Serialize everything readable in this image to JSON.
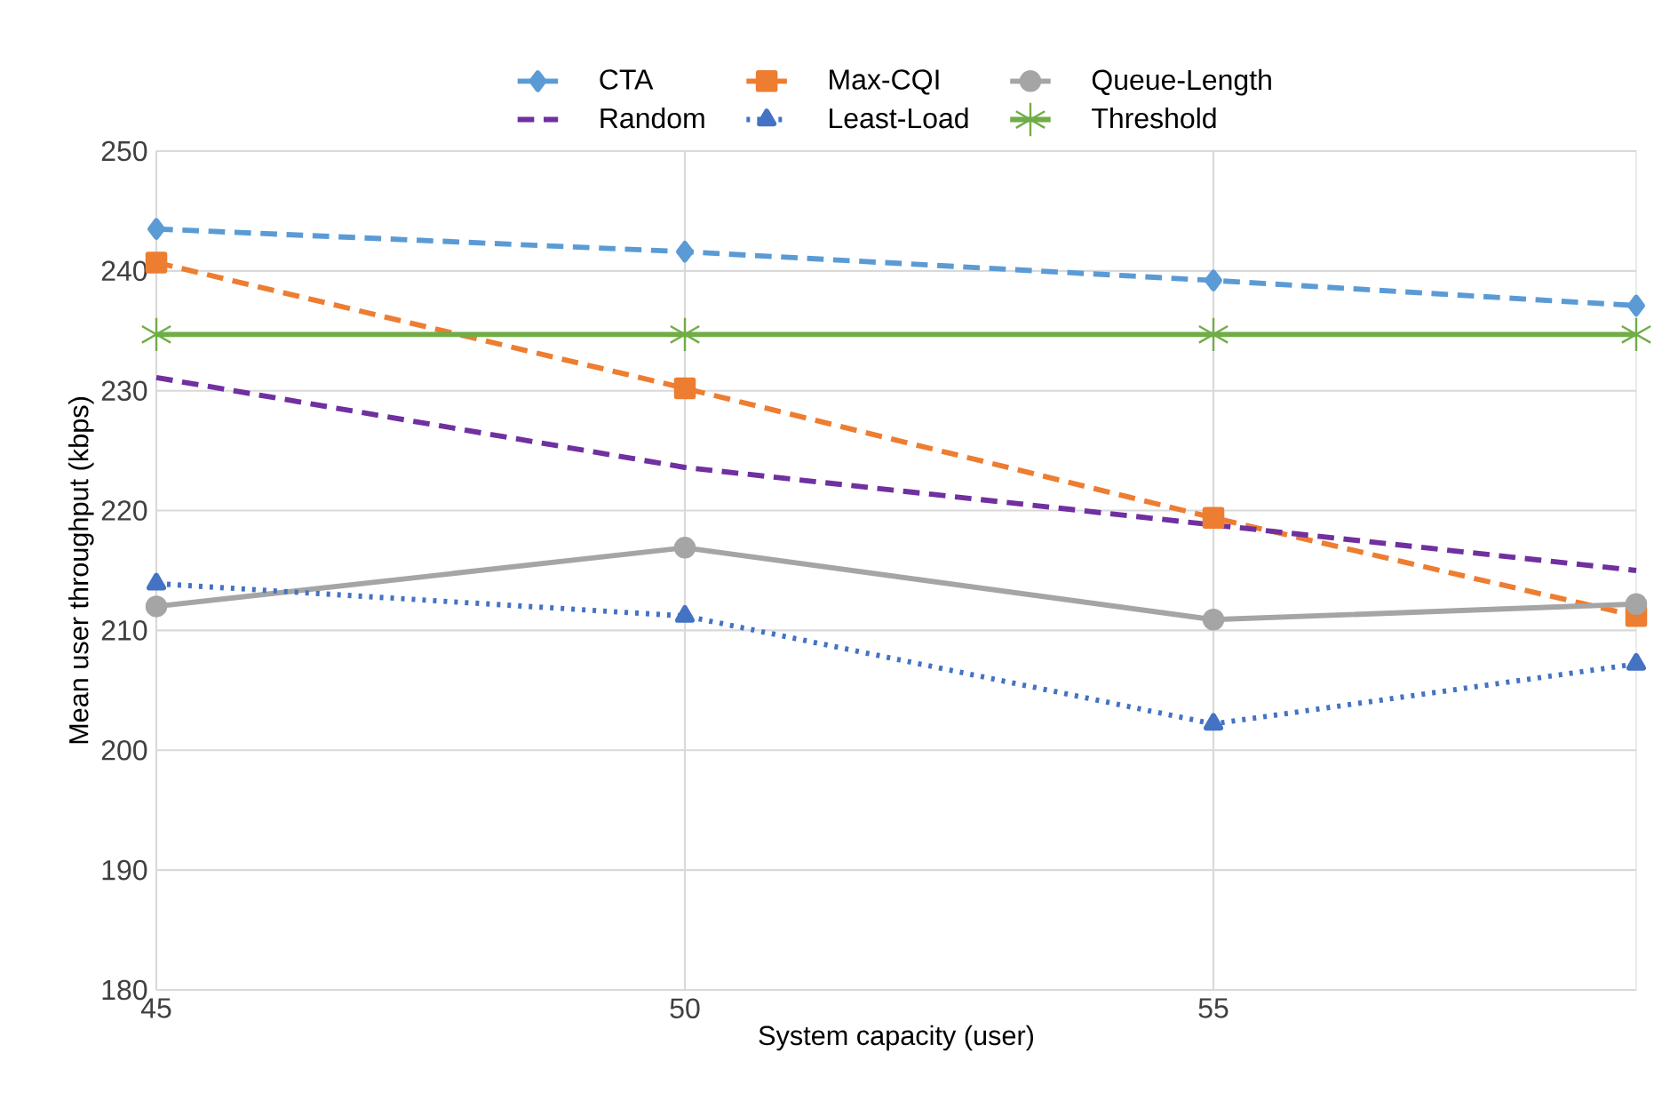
{
  "chart_data": {
    "type": "line",
    "xlabel": "System capacity (user)",
    "ylabel": "Mean user throughput (kbps)",
    "x": [
      45,
      50,
      55,
      59
    ],
    "series": [
      {
        "name": "CTA",
        "color": "#5b9bd5",
        "marker": "diamond",
        "line_style": "dashed",
        "values": [
          243.5,
          241.6,
          239.2,
          237.1
        ]
      },
      {
        "name": "Max-CQI",
        "color": "#ed7d31",
        "marker": "square",
        "line_style": "dashed",
        "values": [
          240.7,
          230.2,
          219.4,
          211.2
        ]
      },
      {
        "name": "Queue-Length",
        "color": "#a5a5a5",
        "marker": "circle",
        "line_style": "solid",
        "values": [
          212.0,
          216.9,
          210.9,
          212.2
        ]
      },
      {
        "name": "Random",
        "color": "#7030a0",
        "marker": "none",
        "line_style": "dashed",
        "values": [
          231.1,
          223.6,
          218.8,
          215.0
        ]
      },
      {
        "name": "Least-Load",
        "color": "#4472c4",
        "marker": "triangle",
        "line_style": "dotted",
        "values": [
          213.9,
          211.2,
          202.2,
          207.2
        ]
      },
      {
        "name": "Threshold",
        "color": "#70ad47",
        "marker": "cross",
        "line_style": "solid",
        "values": [
          234.7,
          234.7,
          234.7,
          234.7
        ]
      }
    ],
    "xlim": [
      45,
      59
    ],
    "xticks": [
      45,
      50,
      55
    ],
    "ylim": [
      180,
      250
    ],
    "yticks": [
      180,
      190,
      200,
      210,
      220,
      230,
      240,
      250
    ],
    "grid": true,
    "legend": "top"
  }
}
